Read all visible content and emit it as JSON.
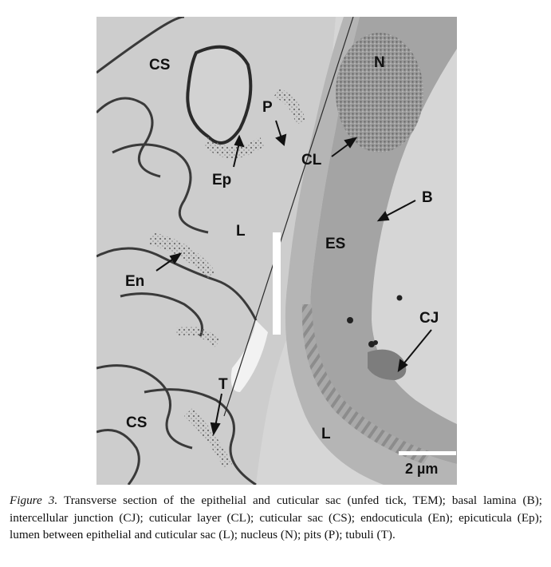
{
  "figure": {
    "labels": {
      "cs_top": "CS",
      "n": "N",
      "p": "P",
      "cl": "CL",
      "ep": "Ep",
      "b": "B",
      "l_upper": "L",
      "es": "ES",
      "en": "En",
      "cj": "CJ",
      "t": "T",
      "cs_bottom": "CS",
      "l_lower": "L"
    },
    "scale_bar": "2 µm"
  },
  "caption": {
    "figure_label": "Figure 3.",
    "text": " Transverse section of the epithelial and cuticular sac (unfed tick, TEM); basal lamina (B); intercellular junction (CJ); cuticular layer (CL); cuticular sac (CS); endocuticula (En); epicuticula (Ep); lumen between epithelial and cuticular sac (L); nucleus (N); pits (P); tubuli (T)."
  }
}
